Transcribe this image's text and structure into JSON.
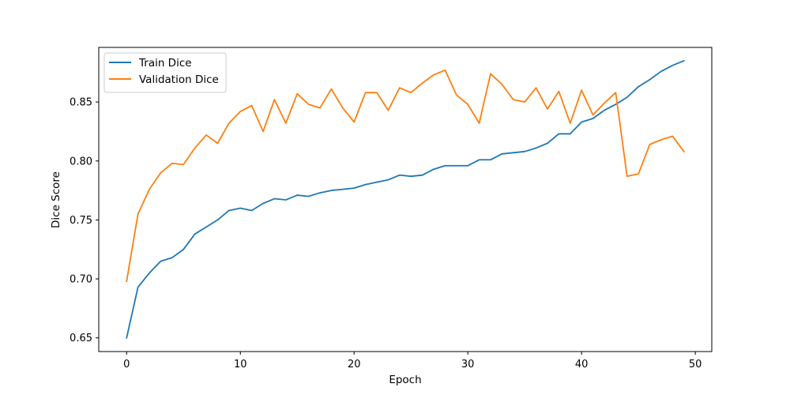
{
  "chart_data": {
    "type": "line",
    "xlabel": "Epoch",
    "ylabel": "Dice Score",
    "xlim": [
      -2.45,
      51.45
    ],
    "ylim": [
      0.6384,
      0.8963
    ],
    "xticks": [
      0,
      10,
      20,
      30,
      40,
      50
    ],
    "yticks": [
      0.65,
      0.7,
      0.75,
      0.8,
      0.85
    ],
    "ytick_labels": [
      "0.65",
      "0.70",
      "0.75",
      "0.80",
      "0.85"
    ],
    "grid": false,
    "legend_position": "top-left",
    "x": [
      0,
      1,
      2,
      3,
      4,
      5,
      6,
      7,
      8,
      9,
      10,
      11,
      12,
      13,
      14,
      15,
      16,
      17,
      18,
      19,
      20,
      21,
      22,
      23,
      24,
      25,
      26,
      27,
      28,
      29,
      30,
      31,
      32,
      33,
      34,
      35,
      36,
      37,
      38,
      39,
      40,
      41,
      42,
      43,
      44,
      45,
      46,
      47,
      48,
      49
    ],
    "series": [
      {
        "name": "Train Dice",
        "color": "#1f77b4",
        "values": [
          0.65,
          0.693,
          0.705,
          0.715,
          0.718,
          0.725,
          0.738,
          0.744,
          0.75,
          0.758,
          0.76,
          0.758,
          0.764,
          0.768,
          0.767,
          0.771,
          0.77,
          0.773,
          0.775,
          0.776,
          0.777,
          0.78,
          0.782,
          0.784,
          0.788,
          0.787,
          0.788,
          0.793,
          0.796,
          0.796,
          0.796,
          0.801,
          0.801,
          0.806,
          0.807,
          0.808,
          0.811,
          0.815,
          0.823,
          0.823,
          0.833,
          0.836,
          0.843,
          0.848,
          0.854,
          0.863,
          0.869,
          0.876,
          0.881,
          0.885
        ]
      },
      {
        "name": "Validation Dice",
        "color": "#ff7f0e",
        "values": [
          0.698,
          0.755,
          0.776,
          0.79,
          0.798,
          0.797,
          0.811,
          0.822,
          0.815,
          0.832,
          0.842,
          0.847,
          0.825,
          0.852,
          0.832,
          0.857,
          0.848,
          0.845,
          0.861,
          0.845,
          0.833,
          0.858,
          0.858,
          0.843,
          0.862,
          0.858,
          0.866,
          0.873,
          0.877,
          0.856,
          0.848,
          0.832,
          0.874,
          0.865,
          0.852,
          0.85,
          0.862,
          0.844,
          0.859,
          0.832,
          0.86,
          0.839,
          0.849,
          0.858,
          0.787,
          0.789,
          0.814,
          0.818,
          0.821,
          0.808
        ]
      }
    ]
  }
}
